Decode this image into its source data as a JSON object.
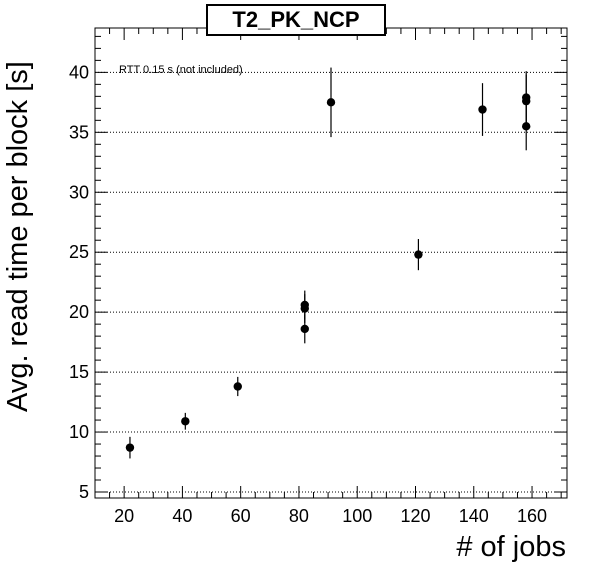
{
  "chart_data": {
    "type": "scatter",
    "title": "T2_PK_NCP",
    "xlabel": "# of jobs",
    "ylabel": "Avg. read time per block [s]",
    "annotation": "RTT 0.15 s (not included)",
    "xlim": [
      10,
      172
    ],
    "ylim": [
      4.5,
      43.7
    ],
    "x_ticks": [
      20,
      40,
      60,
      80,
      100,
      120,
      140,
      160
    ],
    "y_ticks": [
      5,
      10,
      15,
      20,
      25,
      30,
      35,
      40
    ],
    "grid": "horizontal dotted",
    "marker_color": "#000000",
    "points": [
      {
        "x": 22,
        "y": 8.7,
        "err": 0.9
      },
      {
        "x": 41,
        "y": 10.9,
        "err": 0.7
      },
      {
        "x": 59,
        "y": 13.8,
        "err": 0.8
      },
      {
        "x": 82,
        "y": 18.6,
        "err": 1.2
      },
      {
        "x": 82,
        "y": 20.3,
        "err": 1.2
      },
      {
        "x": 82,
        "y": 20.6,
        "err": 1.2
      },
      {
        "x": 91,
        "y": 37.5,
        "err": 2.9
      },
      {
        "x": 121,
        "y": 24.8,
        "err": 1.3
      },
      {
        "x": 143,
        "y": 36.9,
        "err": 2.2
      },
      {
        "x": 158,
        "y": 35.5,
        "err": 2.0
      },
      {
        "x": 158,
        "y": 37.6,
        "err": 2.2
      },
      {
        "x": 158,
        "y": 37.9,
        "err": 2.2
      }
    ]
  }
}
